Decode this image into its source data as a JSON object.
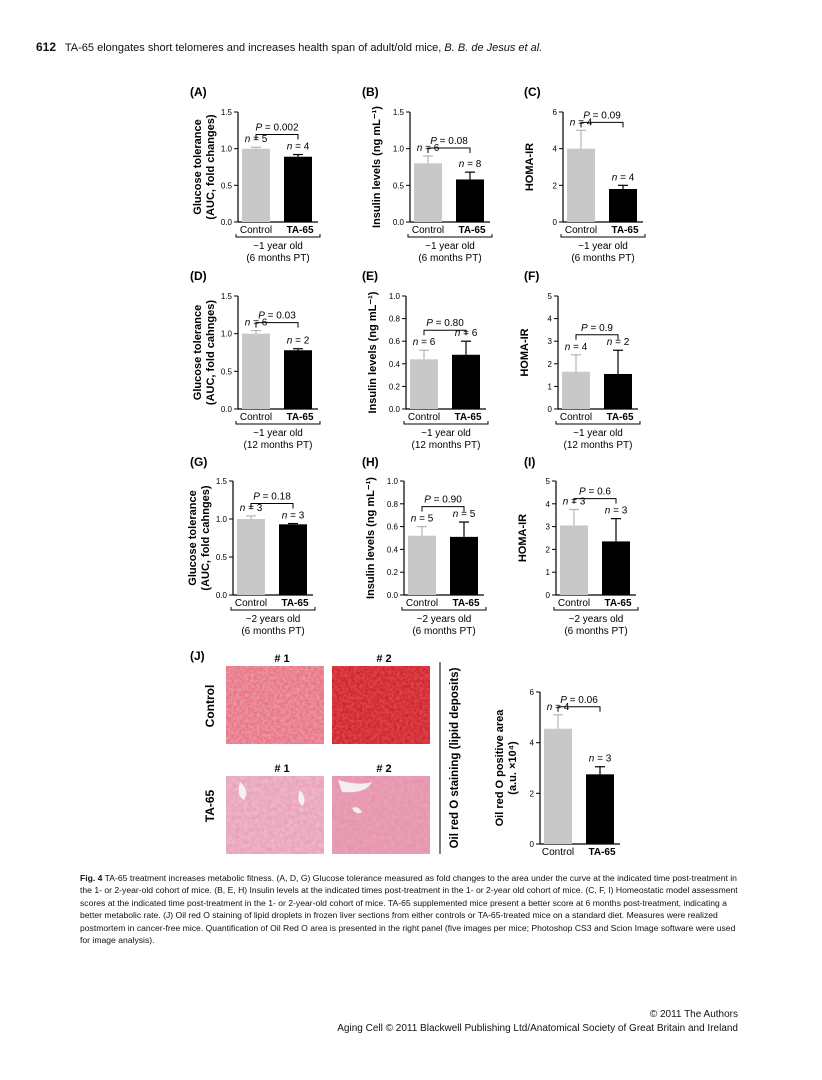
{
  "header": {
    "page_number": "612",
    "running_title": "TA-65 elongates short telomeres and increases health span of adult/old mice,",
    "authors": "B. B. de Jesus et al."
  },
  "chart_data": [
    {
      "panel": "(A)",
      "type": "bar",
      "ylabel": "Glucose tolerance\n(AUC, fold changes)",
      "ylim": [
        0,
        1.5
      ],
      "yticks": [
        "0.0",
        "0.5",
        "1.0",
        "1.5"
      ],
      "categories": [
        "Control",
        "TA-65"
      ],
      "values": [
        1.0,
        0.89
      ],
      "errors": [
        0.02,
        0.03
      ],
      "n": [
        "n = 5",
        "n = 4"
      ],
      "p": "P = 0.002",
      "age": "~1 year old",
      "pt": "(6 months PT)"
    },
    {
      "panel": "(B)",
      "type": "bar",
      "ylabel": "Insulin levels (ng mL⁻¹)",
      "ylim": [
        0,
        1.5
      ],
      "yticks": [
        "0.0",
        "0.5",
        "1.0",
        "1.5"
      ],
      "categories": [
        "Control",
        "TA-65"
      ],
      "values": [
        0.8,
        0.58
      ],
      "errors": [
        0.1,
        0.1
      ],
      "n": [
        "n = 6",
        "n = 8"
      ],
      "p": "P = 0.08",
      "age": "~1 year old",
      "pt": "(6 months PT)"
    },
    {
      "panel": "(C)",
      "type": "bar",
      "ylabel": "HOMA-IR",
      "ylim": [
        0,
        6
      ],
      "yticks": [
        "0",
        "2",
        "4",
        "6"
      ],
      "categories": [
        "Control",
        "TA-65"
      ],
      "values": [
        4.0,
        1.8
      ],
      "errors": [
        1.0,
        0.2
      ],
      "n": [
        "n = 4",
        "n = 4"
      ],
      "p": "P = 0.09",
      "age": "~1 year old",
      "pt": "(6 months PT)"
    },
    {
      "panel": "(D)",
      "type": "bar",
      "ylabel": "Glucose tolerance\n(AUC, fold cahnges)",
      "ylim": [
        0,
        1.5
      ],
      "yticks": [
        "0.0",
        "0.5",
        "1.0",
        "1.5"
      ],
      "categories": [
        "Control",
        "TA-65"
      ],
      "values": [
        1.0,
        0.78
      ],
      "errors": [
        0.04,
        0.02
      ],
      "n": [
        "n = 6",
        "n = 2"
      ],
      "p": "P = 0.03",
      "age": "~1 year old",
      "pt": "(12 months PT)"
    },
    {
      "panel": "(E)",
      "type": "bar",
      "ylabel": "Insulin levels (ng mL⁻¹)",
      "ylim": [
        0,
        1.0
      ],
      "yticks": [
        "0.0",
        "0.2",
        "0.4",
        "0.6",
        "0.8",
        "1.0"
      ],
      "categories": [
        "Control",
        "TA-65"
      ],
      "values": [
        0.44,
        0.48
      ],
      "errors": [
        0.08,
        0.12
      ],
      "n": [
        "n = 6",
        "n = 6"
      ],
      "p": "P = 0.80",
      "age": "~1 year old",
      "pt": "(12 months PT)"
    },
    {
      "panel": "(F)",
      "type": "bar",
      "ylabel": "HOMA-IR",
      "ylim": [
        0,
        5
      ],
      "yticks": [
        "0",
        "1",
        "2",
        "3",
        "4",
        "5"
      ],
      "categories": [
        "Control",
        "TA-65"
      ],
      "values": [
        1.65,
        1.55
      ],
      "errors": [
        0.75,
        1.05
      ],
      "n": [
        "n = 4",
        "n = 2"
      ],
      "p": "P = 0.9",
      "age": "~1 year old",
      "pt": "(12 months PT)"
    },
    {
      "panel": "(G)",
      "type": "bar",
      "ylabel": "Glucose tolerance\n(AUC, fold cahnges)",
      "ylim": [
        0,
        1.5
      ],
      "yticks": [
        "0.0",
        "0.5",
        "1.0",
        "1.5"
      ],
      "categories": [
        "Control",
        "TA-65"
      ],
      "values": [
        1.0,
        0.93
      ],
      "errors": [
        0.04,
        0.01
      ],
      "n": [
        "n = 3",
        "n = 3"
      ],
      "p": "P = 0.18",
      "age": "~2 years old",
      "pt": "(6 months PT)"
    },
    {
      "panel": "(H)",
      "type": "bar",
      "ylabel": "Insulin levels (ng mL⁻¹)",
      "ylim": [
        0,
        1.0
      ],
      "yticks": [
        "0.0",
        "0.2",
        "0.4",
        "0.6",
        "0.8",
        "1.0"
      ],
      "categories": [
        "Control",
        "TA-65"
      ],
      "values": [
        0.52,
        0.51
      ],
      "errors": [
        0.08,
        0.13
      ],
      "n": [
        "n = 5",
        "n = 5"
      ],
      "p": "P = 0.90",
      "age": "~2 years old",
      "pt": "(6 months PT)"
    },
    {
      "panel": "(I)",
      "type": "bar",
      "ylabel": "HOMA-IR",
      "ylim": [
        0,
        5
      ],
      "yticks": [
        "0",
        "1",
        "2",
        "3",
        "4",
        "5"
      ],
      "categories": [
        "Control",
        "TA-65"
      ],
      "values": [
        3.05,
        2.35
      ],
      "errors": [
        0.7,
        1.0
      ],
      "n": [
        "n = 3",
        "n = 3"
      ],
      "p": "P = 0.6",
      "age": "~2 years old",
      "pt": "(6 months PT)"
    },
    {
      "panel": "(J)",
      "type": "bar",
      "ylabel": "Oil red O positive area\n(a.u. ×10⁴)",
      "ylim": [
        0,
        6
      ],
      "yticks": [
        "0",
        "2",
        "4",
        "6"
      ],
      "categories": [
        "Control",
        "TA-65"
      ],
      "values": [
        4.55,
        2.75
      ],
      "errors": [
        0.55,
        0.3
      ],
      "n": [
        "n = 4",
        "n = 3"
      ],
      "p": "P = 0.06",
      "age": "",
      "pt": ""
    }
  ],
  "panel_j": {
    "label": "(J)",
    "col_labels": [
      "# 1",
      "# 2"
    ],
    "row_labels": [
      "Control",
      "TA-65"
    ],
    "side_label": "Oil red O staining (lipid deposits)"
  },
  "caption": {
    "label": "Fig. 4",
    "text": " TA-65  treatment increases metabolic fitness. (A, D, G) Glucose tolerance measured as fold changes to the area under the curve at the indicated time post-treatment in the 1- or 2-year-old cohort of mice. (B, E, H) Insulin levels at the indicated times post-treatment in the 1- or 2-year old cohort of mice. (C, F, I) Homeostatic model assessment scores at the indicated time post-treatment in the 1- or 2-year-old cohort of mice. TA-65 supplemented mice present a better score at 6 months post-treatment, indicating a better metabolic rate. (J) Oil red O staining of lipid droplets in frozen liver sections from either controls or TA-65-treated mice on a standard diet. Measures were realized postmortem in cancer-free mice. Quantification of Oil Red O area is presented in the right panel (five images per mice; Photoshop CS3 and Scion Image software were used for image analysis)."
  },
  "footer": {
    "copyright": "© 2011 The Authors",
    "journal": "Aging Cell © 2011 Blackwell Publishing Ltd/Anatomical Society of Great Britain and Ireland"
  },
  "colors": {
    "control_bar": "#c8c8c8",
    "ta65_bar": "#000000",
    "stain_control": "#d9303c",
    "stain_ta65": "#d6506a"
  }
}
